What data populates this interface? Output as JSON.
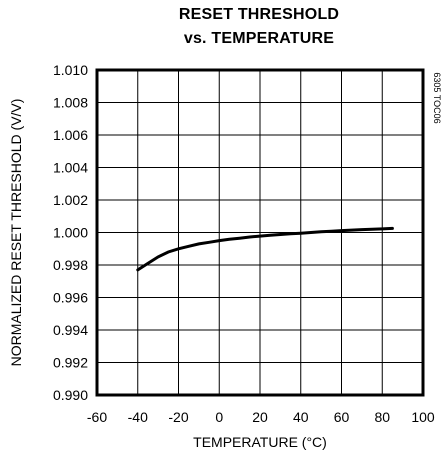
{
  "chart_data": {
    "type": "line",
    "title_line1": "RESET THRESHOLD",
    "title_line2": "vs. TEMPERATURE",
    "xlabel": "TEMPERATURE (°C)",
    "ylabel": "NORMALIZED RESET THRESHOLD (V/V)",
    "figure_code": "6305 TOC06",
    "xlim": [
      -60,
      100
    ],
    "ylim": [
      0.99,
      1.01
    ],
    "x_ticks": [
      "-60",
      "-40",
      "-20",
      "0",
      "20",
      "40",
      "60",
      "80",
      "100"
    ],
    "y_ticks": [
      "1.010",
      "1.008",
      "1.006",
      "1.004",
      "1.002",
      "1.000",
      "0.998",
      "0.996",
      "0.994",
      "0.992",
      "0.990"
    ],
    "grid": true,
    "series": [
      {
        "x": [
          -40,
          -35,
          -30,
          -25,
          -20,
          -15,
          -10,
          -5,
          0,
          5,
          10,
          15,
          20,
          25,
          30,
          35,
          40,
          45,
          50,
          55,
          60,
          65,
          70,
          75,
          80,
          85
        ],
        "y": [
          0.9977,
          0.9981,
          0.9985,
          0.9988,
          0.999,
          0.99915,
          0.9993,
          0.9994,
          0.9995,
          0.99958,
          0.99965,
          0.99972,
          0.99978,
          0.99983,
          0.99988,
          0.99992,
          0.99996,
          1.0,
          1.00005,
          1.00008,
          1.00012,
          1.00015,
          1.00018,
          1.0002,
          1.00022,
          1.00025
        ]
      }
    ]
  }
}
